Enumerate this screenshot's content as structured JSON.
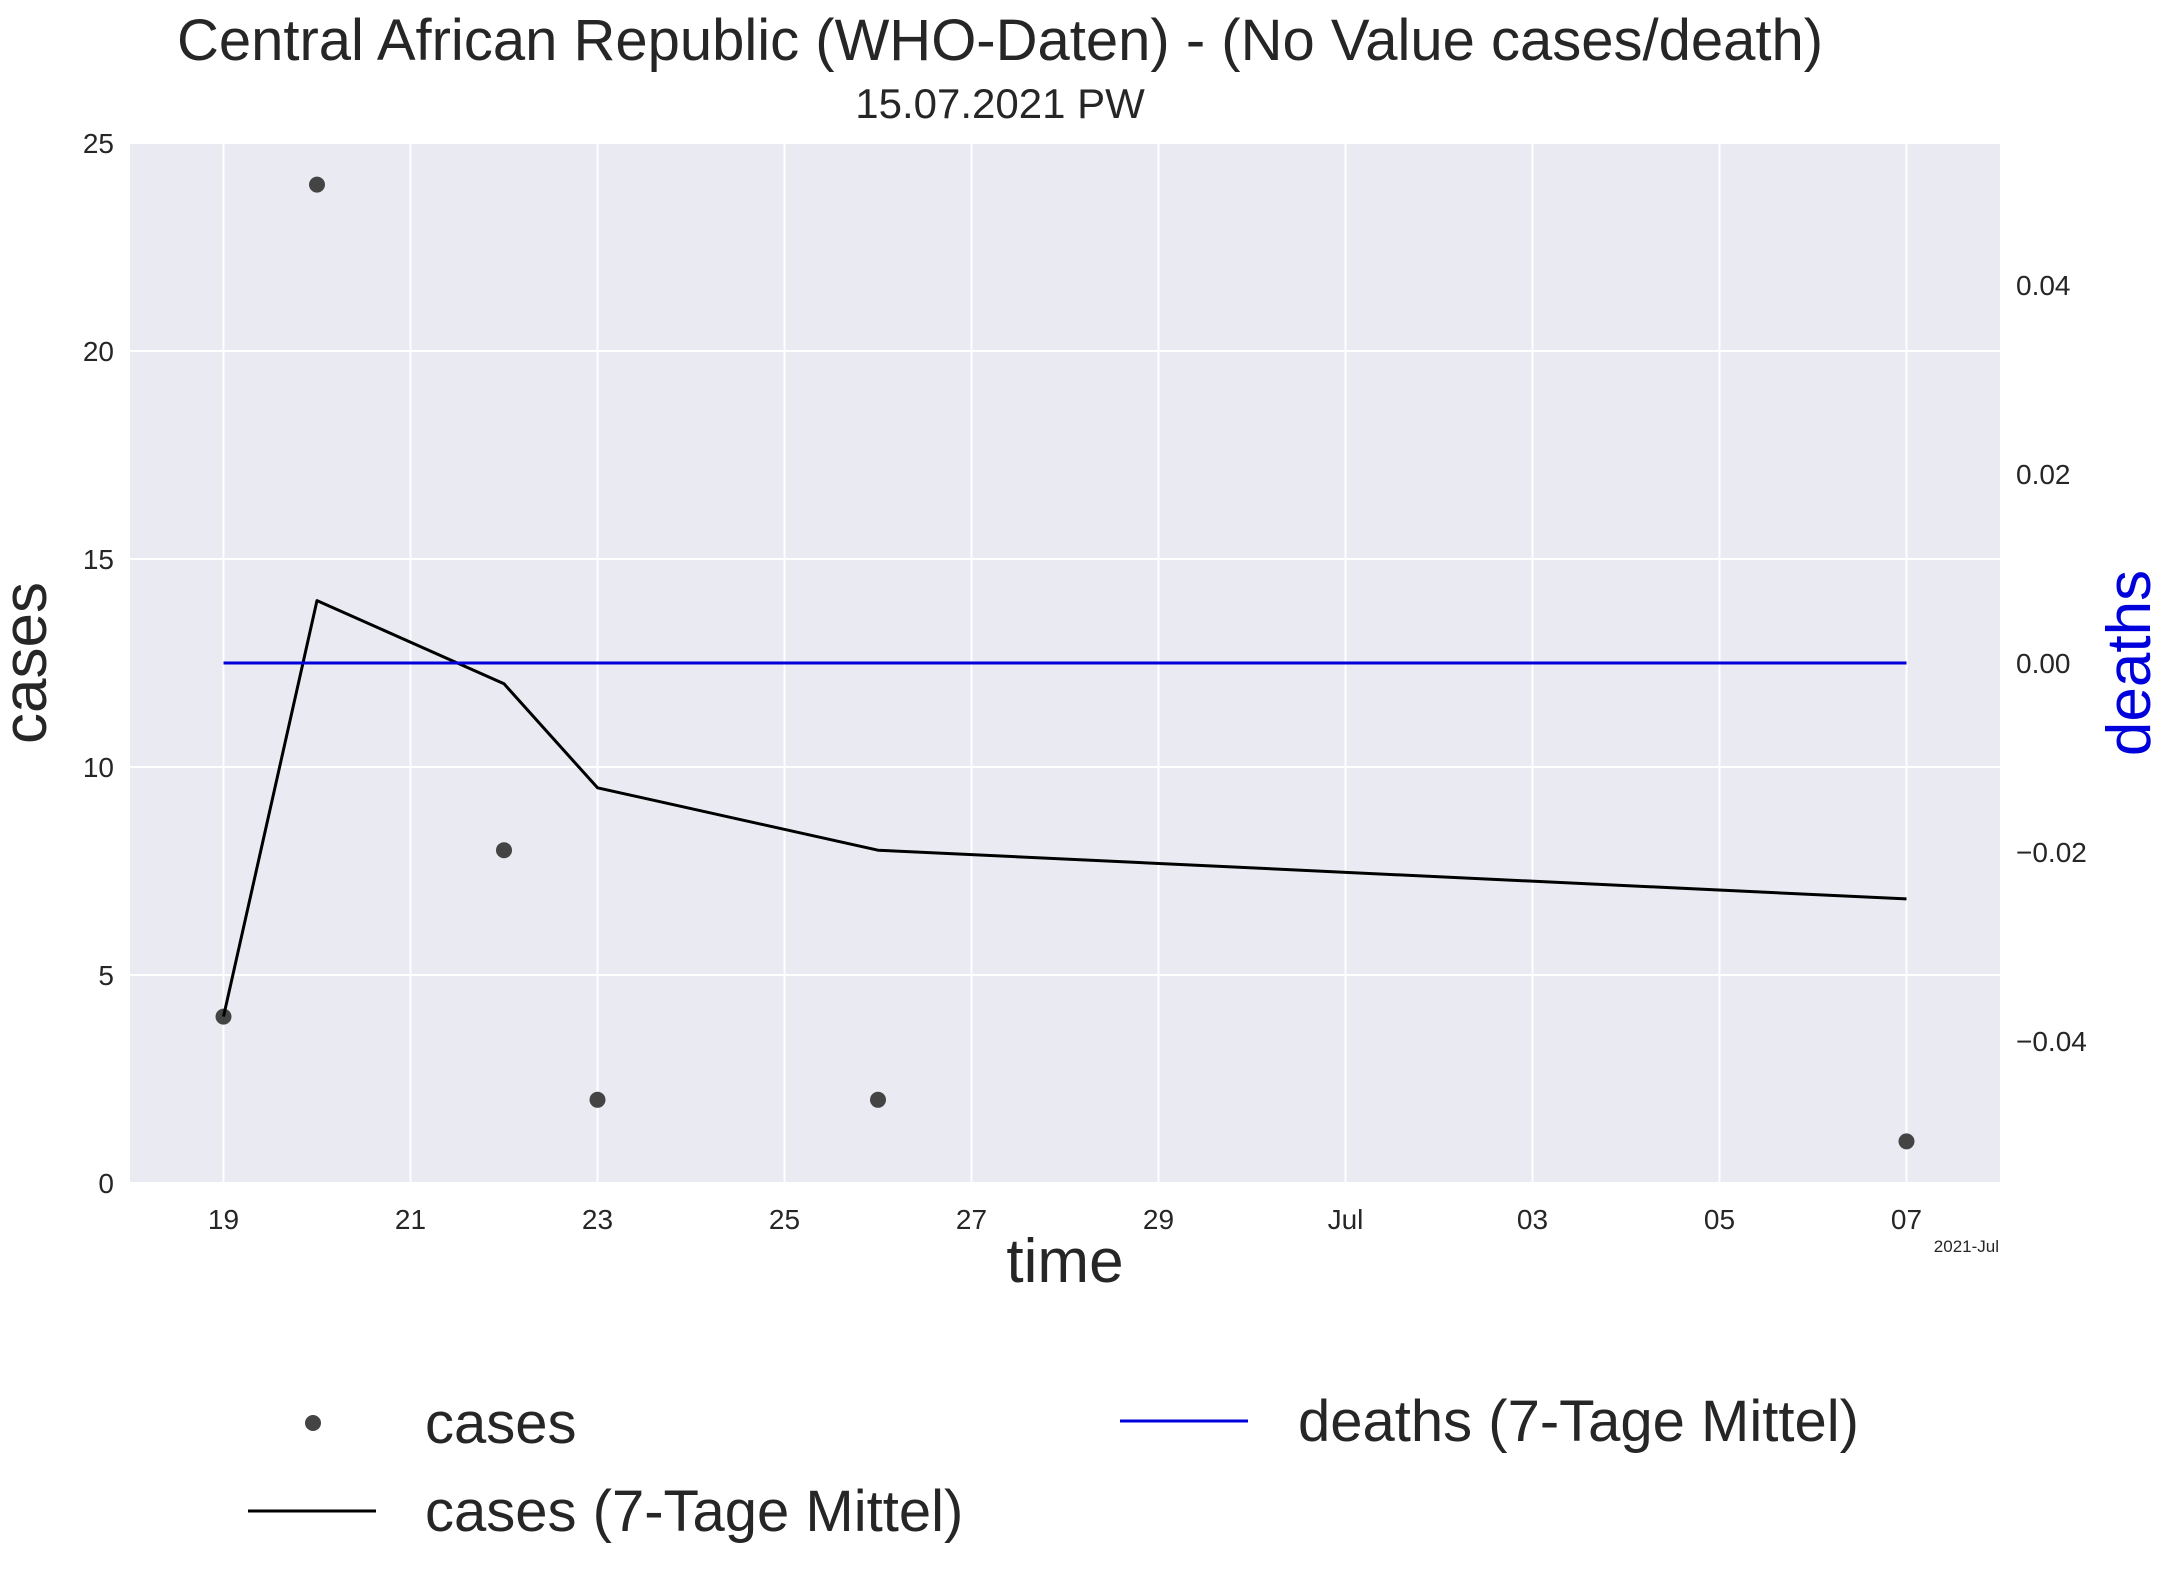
{
  "chart_data": {
    "type": "line",
    "title": "Central African Republic (WHO-Daten) - (No Value cases/death)",
    "subtitle": "15.07.2021 PW",
    "xlabel": "time",
    "ylabel_left": "cases",
    "ylabel_right": "deaths",
    "x_offset_label": "2021-Jul",
    "x_range": [
      "2021-06-18",
      "2021-07-08"
    ],
    "x_ticks": [
      {
        "date": "2021-06-19",
        "label": "19"
      },
      {
        "date": "2021-06-21",
        "label": "21"
      },
      {
        "date": "2021-06-23",
        "label": "23"
      },
      {
        "date": "2021-06-25",
        "label": "25"
      },
      {
        "date": "2021-06-27",
        "label": "27"
      },
      {
        "date": "2021-06-29",
        "label": "29"
      },
      {
        "date": "2021-07-01",
        "label": "Jul"
      },
      {
        "date": "2021-07-03",
        "label": "03"
      },
      {
        "date": "2021-07-05",
        "label": "05"
      },
      {
        "date": "2021-07-07",
        "label": "07"
      }
    ],
    "y_left": {
      "min": 0,
      "max": 25,
      "ticks": [
        0,
        5,
        10,
        15,
        20,
        25
      ]
    },
    "y_right": {
      "min": -0.055,
      "max": 0.055,
      "ticks": [
        "-0.04",
        "-0.02",
        "0.00",
        "0.02",
        "0.04"
      ]
    },
    "grid": true,
    "legend_position": "bottom",
    "colors": {
      "cases": "#444444",
      "cases_avg": "#000000",
      "deaths_avg": "#0000dd",
      "plot_bg": "#eaeaf2"
    },
    "series": [
      {
        "name": "cases",
        "kind": "scatter",
        "axis": "left",
        "points": [
          {
            "x": "2021-06-19",
            "y": 4
          },
          {
            "x": "2021-06-20",
            "y": 24
          },
          {
            "x": "2021-06-22",
            "y": 8
          },
          {
            "x": "2021-06-23",
            "y": 2
          },
          {
            "x": "2021-06-26",
            "y": 2
          },
          {
            "x": "2021-07-07",
            "y": 1
          }
        ]
      },
      {
        "name": "cases (7-Tage Mittel)",
        "kind": "line",
        "axis": "left",
        "points": [
          {
            "x": "2021-06-19",
            "y": 4
          },
          {
            "x": "2021-06-20",
            "y": 14
          },
          {
            "x": "2021-06-22",
            "y": 12
          },
          {
            "x": "2021-06-23",
            "y": 9.5
          },
          {
            "x": "2021-06-26",
            "y": 8
          },
          {
            "x": "2021-07-07",
            "y": 6.83
          }
        ]
      },
      {
        "name": "deaths (7-Tage Mittel)",
        "kind": "line",
        "axis": "right",
        "points": [
          {
            "x": "2021-06-19",
            "y": 0
          },
          {
            "x": "2021-07-07",
            "y": 0
          }
        ]
      }
    ]
  }
}
